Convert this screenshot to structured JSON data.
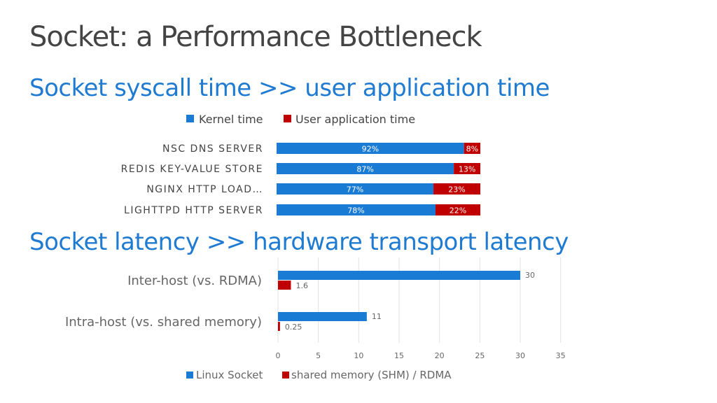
{
  "slide": {
    "title": "Socket: a Performance Bottleneck"
  },
  "colors": {
    "kernel": "#1a7bd4",
    "user": "#c00000",
    "heading": "#1f7bd1"
  },
  "chart_data": [
    {
      "type": "bar",
      "stacked": true,
      "orientation": "horizontal",
      "percent_stacked": true,
      "title": "Socket syscall time >> user application time",
      "categories": [
        "NSC DNS SERVER",
        "REDIS KEY-VALUE STORE",
        "NGINX HTTP LOAD…",
        "LIGHTTPD HTTP SERVER"
      ],
      "series": [
        {
          "name": "Kernel time",
          "values": [
            92,
            87,
            77,
            78
          ],
          "labels": [
            "92%",
            "87%",
            "77%",
            "78%"
          ],
          "color": "#1a7bd4"
        },
        {
          "name": "User application time",
          "values": [
            8,
            13,
            23,
            22
          ],
          "labels": [
            "8%",
            "13%",
            "23%",
            "22%"
          ],
          "color": "#c00000"
        }
      ],
      "legend": "top"
    },
    {
      "type": "bar",
      "orientation": "horizontal",
      "title": "Socket latency >> hardware transport latency",
      "categories": [
        "Inter-host (vs. RDMA)",
        "Intra-host (vs. shared memory)"
      ],
      "series": [
        {
          "name": "Linux Socket",
          "values": [
            30,
            11
          ],
          "color": "#1a7bd4"
        },
        {
          "name": "shared memory (SHM) / RDMA",
          "values": [
            1.6,
            0.25
          ],
          "color": "#c00000"
        }
      ],
      "xlim": [
        0,
        35
      ],
      "xticks": [
        0,
        5,
        10,
        15,
        20,
        25,
        30,
        35
      ],
      "grid": true,
      "legend": "bottom"
    }
  ]
}
